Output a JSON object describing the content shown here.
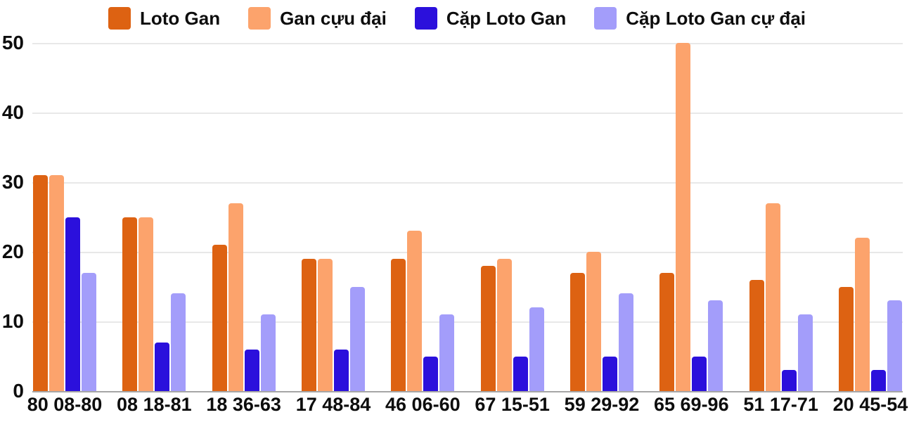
{
  "legend": {
    "items": [
      {
        "label": "Loto Gan",
        "color": "#DD6212"
      },
      {
        "label": "Gan cựu đại",
        "color": "#FCA36C"
      },
      {
        "label": "Cặp Loto Gan",
        "color": "#2B10DC"
      },
      {
        "label": "Cặp Loto Gan cự đại",
        "color": "#A39DFA"
      }
    ]
  },
  "colors": {
    "background": "#FFFFFF",
    "gridline": "#E8E8E8",
    "axis_line": "#A6A6A6",
    "text": "#0D0D0D"
  },
  "chart_data": {
    "type": "bar",
    "title": "",
    "xlabel": "",
    "ylabel": "",
    "categories": [
      "80 08-80",
      "08 18-81",
      "18 36-63",
      "17 48-84",
      "46 06-60",
      "67 15-51",
      "59 29-92",
      "65 69-96",
      "51 17-71",
      "20 45-54"
    ],
    "series": [
      {
        "name": "Loto Gan",
        "color": "#DD6212",
        "values": [
          31,
          25,
          21,
          19,
          19,
          18,
          17,
          17,
          16,
          15
        ]
      },
      {
        "name": "Gan cựu đại",
        "color": "#FCA36C",
        "values": [
          31,
          25,
          27,
          19,
          23,
          19,
          20,
          50,
          27,
          22
        ]
      },
      {
        "name": "Cặp Loto Gan",
        "color": "#2B10DC",
        "values": [
          25,
          7,
          6,
          6,
          5,
          5,
          5,
          5,
          3,
          3
        ]
      },
      {
        "name": "Cặp Loto Gan cự đại",
        "color": "#A39DFA",
        "values": [
          17,
          14,
          11,
          15,
          11,
          12,
          14,
          13,
          11,
          13
        ]
      }
    ],
    "ylim": [
      0,
      50
    ],
    "yticks": [
      0,
      10,
      20,
      30,
      40,
      50
    ],
    "grid": "horizontal",
    "legend_position": "top"
  }
}
